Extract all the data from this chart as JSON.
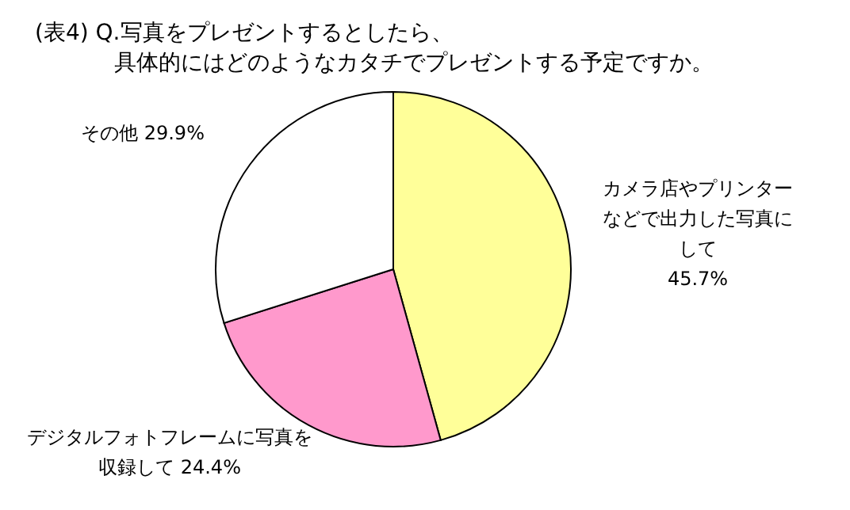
{
  "chart_data": {
    "type": "pie",
    "title": "(表4)  Q.写真をプレゼントするとしたら、",
    "subtitle": "具体的にはどのようなカタチでプレゼントする予定ですか。",
    "categories": [
      "カメラ店やプリンターなどで出力した写真にして",
      "デジタルフォトフレームに写真を収録して",
      "その他"
    ],
    "values": [
      45.7,
      24.4,
      29.9
    ],
    "value_labels": [
      "45.7%",
      "24.4%",
      "29.9%"
    ],
    "colors": [
      "#ffff99",
      "#ff99cc",
      "#ffffff"
    ],
    "legend": false
  }
}
